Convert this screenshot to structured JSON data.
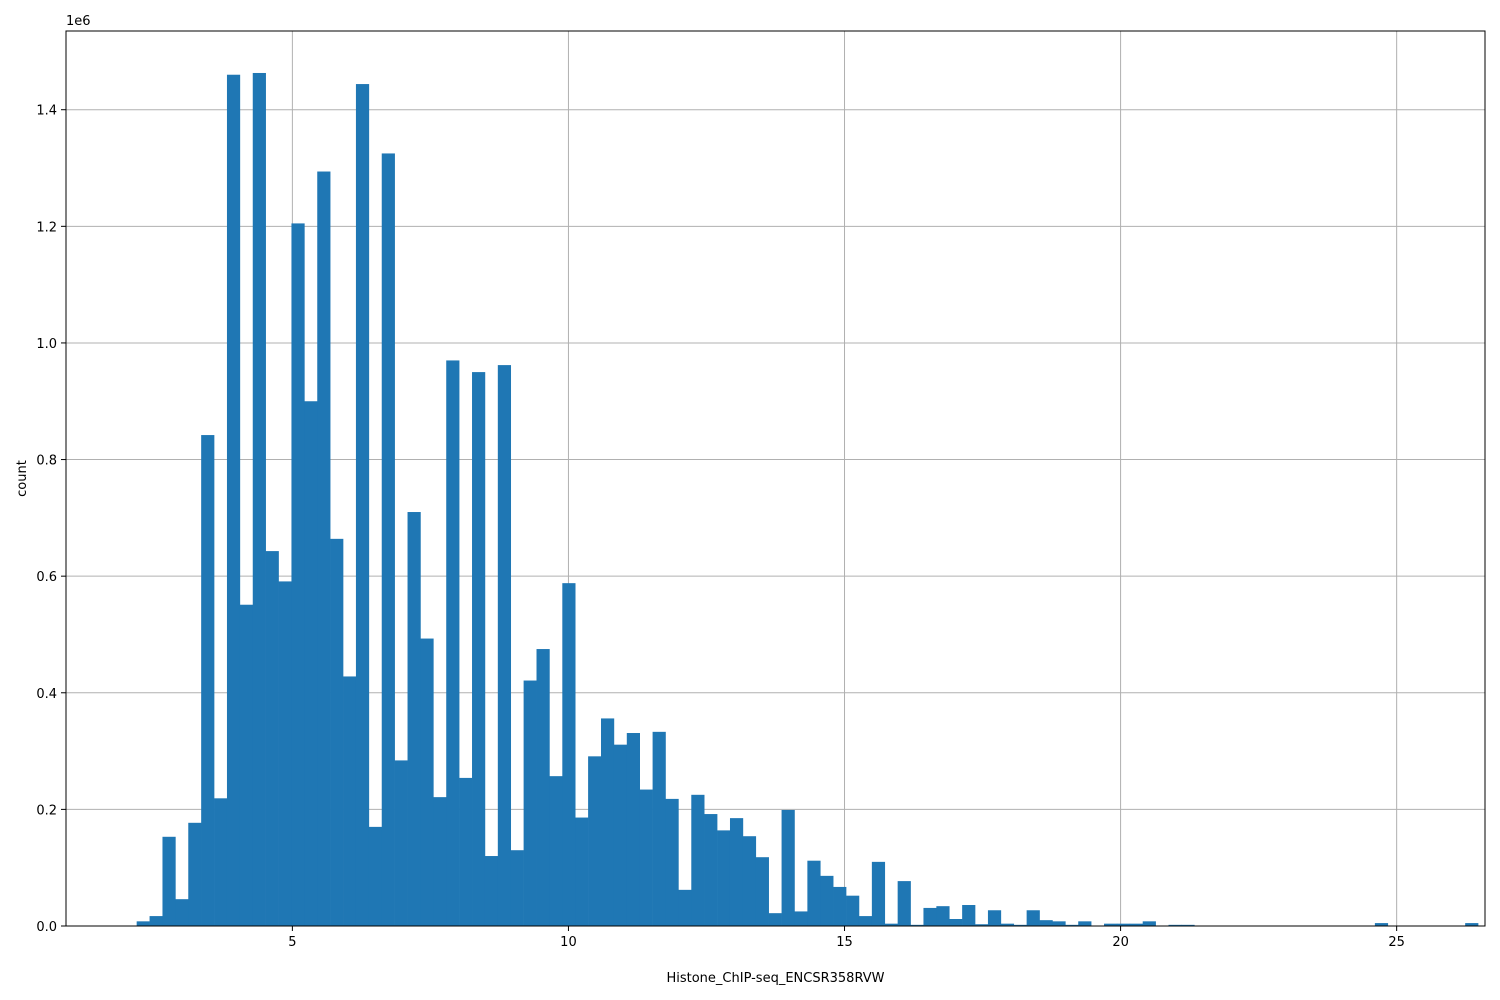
{
  "chart_data": {
    "type": "bar",
    "xlabel": "Histone_ChIP-seq_ENCSR358RVW",
    "ylabel": "count",
    "y_offset_label": "1e6",
    "xlim": [
      0.9,
      26.6
    ],
    "ylim": [
      0,
      1.535
    ],
    "grid": true,
    "x_ticks": [
      5,
      10,
      15,
      20,
      25
    ],
    "x_tick_labels": [
      "5",
      "10",
      "15",
      "20",
      "25"
    ],
    "y_ticks": [
      0,
      0.2,
      0.4,
      0.6,
      0.8,
      1.0,
      1.2,
      1.4
    ],
    "y_tick_labels": [
      "0.0",
      "0.2",
      "0.4",
      "0.6",
      "0.8",
      "1.0",
      "1.2",
      "1.4"
    ],
    "bin_start": 2.18,
    "bin_width": 0.2336,
    "values": [
      0.008,
      0.017,
      0.153,
      0.046,
      0.177,
      0.842,
      0.219,
      1.46,
      0.551,
      1.463,
      0.643,
      0.591,
      1.205,
      0.9,
      1.294,
      0.664,
      0.428,
      1.444,
      0.17,
      1.325,
      0.284,
      0.71,
      0.493,
      0.221,
      0.97,
      0.254,
      0.95,
      0.12,
      0.962,
      0.13,
      0.421,
      0.475,
      0.257,
      0.588,
      0.186,
      0.291,
      0.356,
      0.311,
      0.331,
      0.234,
      0.333,
      0.218,
      0.062,
      0.225,
      0.192,
      0.164,
      0.185,
      0.154,
      0.118,
      0.022,
      0.199,
      0.025,
      0.112,
      0.086,
      0.067,
      0.052,
      0.017,
      0.11,
      0.004,
      0.077,
      0.002,
      0.031,
      0.034,
      0.012,
      0.036,
      0.003,
      0.027,
      0.004,
      0.002,
      0.027,
      0.01,
      0.008,
      0.002,
      0.008,
      0.0,
      0.004,
      0.004,
      0.004,
      0.008,
      0.0,
      0.002,
      0.002,
      0.0,
      0.0,
      0.0,
      0.0,
      0.0,
      0.0,
      0.0,
      0.0,
      0.0,
      0.0,
      0.0,
      0.0,
      0.0,
      0.0,
      0.005,
      0.0,
      0.0,
      0.0,
      0.0,
      0.0,
      0.0,
      0.005
    ]
  }
}
